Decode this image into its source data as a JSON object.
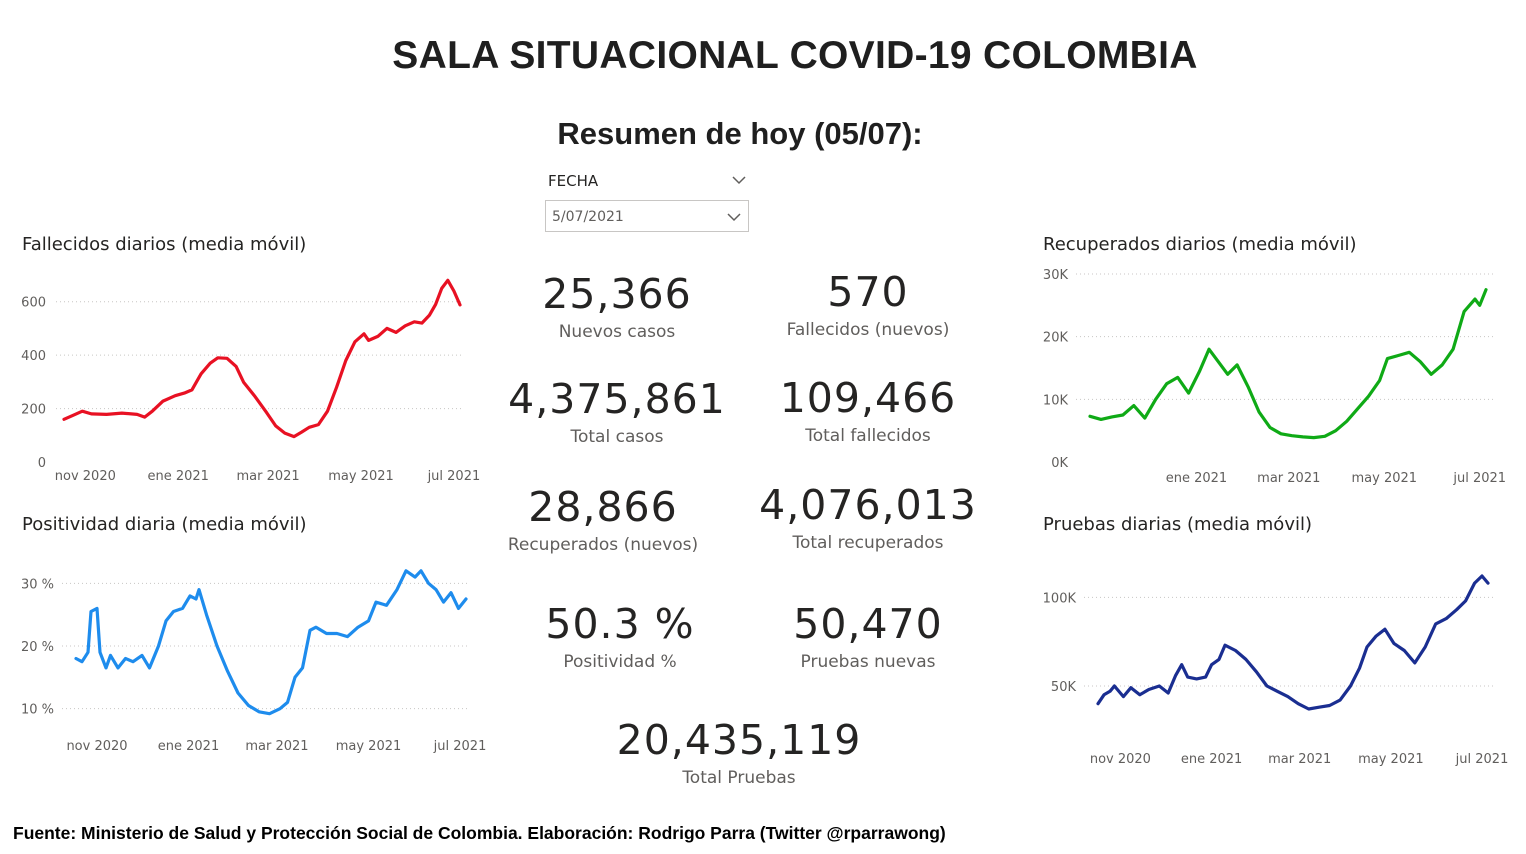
{
  "header": {
    "title": "SALA SITUACIONAL COVID-19 COLOMBIA",
    "subtitle": "Resumen de hoy (05/07):"
  },
  "slicer": {
    "label": "FECHA",
    "value": "5/07/2021"
  },
  "kpis": {
    "nuevos_casos": {
      "value": "25,366",
      "label": "Nuevos casos"
    },
    "fallecidos_nuevos": {
      "value": "570",
      "label": "Fallecidos (nuevos)"
    },
    "total_casos": {
      "value": "4,375,861",
      "label": "Total casos"
    },
    "total_fallecidos": {
      "value": "109,466",
      "label": "Total fallecidos"
    },
    "recuperados_nuevos": {
      "value": "28,866",
      "label": "Recuperados (nuevos)"
    },
    "total_recuperados": {
      "value": "4,076,013",
      "label": "Total recuperados"
    },
    "positividad": {
      "value": "50.3 %",
      "label": "Positividad %"
    },
    "pruebas_nuevas": {
      "value": "50,470",
      "label": "Pruebas nuevas"
    },
    "total_pruebas": {
      "value": "20,435,119",
      "label": "Total Pruebas"
    }
  },
  "footer": "Fuente: Ministerio de Salud y Protección Social de Colombia. Elaboración: Rodrigo Parra (Twitter @rparrawong)",
  "chart_data": [
    {
      "id": "fallecidos",
      "type": "line",
      "title": "Fallecidos diarios (media móvil)",
      "color": "#e81123",
      "x_range": [
        "2020-10-18",
        "2021-07-05"
      ],
      "ylim": [
        0,
        700
      ],
      "yticks": [
        {
          "v": 0,
          "label": "0"
        },
        {
          "v": 200,
          "label": "200"
        },
        {
          "v": 400,
          "label": "400"
        },
        {
          "v": 600,
          "label": "600"
        }
      ],
      "xticks": [
        {
          "d": "2020-11-01",
          "label": "nov 2020"
        },
        {
          "d": "2021-01-01",
          "label": "ene 2021"
        },
        {
          "d": "2021-03-01",
          "label": "mar 2021"
        },
        {
          "d": "2021-05-01",
          "label": "may 2021"
        },
        {
          "d": "2021-07-01",
          "label": "jul 2021"
        }
      ],
      "points": [
        [
          "2020-10-18",
          160
        ],
        [
          "2020-10-24",
          175
        ],
        [
          "2020-10-30",
          190
        ],
        [
          "2020-11-05",
          180
        ],
        [
          "2020-11-15",
          178
        ],
        [
          "2020-11-25",
          183
        ],
        [
          "2020-12-05",
          178
        ],
        [
          "2020-12-10",
          168
        ],
        [
          "2020-12-15",
          190
        ],
        [
          "2020-12-22",
          228
        ],
        [
          "2020-12-30",
          248
        ],
        [
          "2021-01-05",
          258
        ],
        [
          "2021-01-10",
          270
        ],
        [
          "2021-01-16",
          330
        ],
        [
          "2021-01-22",
          370
        ],
        [
          "2021-01-27",
          390
        ],
        [
          "2021-02-02",
          388
        ],
        [
          "2021-02-08",
          358
        ],
        [
          "2021-02-13",
          298
        ],
        [
          "2021-02-20",
          248
        ],
        [
          "2021-02-28",
          185
        ],
        [
          "2021-03-06",
          135
        ],
        [
          "2021-03-12",
          108
        ],
        [
          "2021-03-18",
          95
        ],
        [
          "2021-03-23",
          112
        ],
        [
          "2021-03-28",
          130
        ],
        [
          "2021-04-03",
          140
        ],
        [
          "2021-04-09",
          190
        ],
        [
          "2021-04-15",
          280
        ],
        [
          "2021-04-21",
          380
        ],
        [
          "2021-04-27",
          450
        ],
        [
          "2021-05-03",
          480
        ],
        [
          "2021-05-06",
          455
        ],
        [
          "2021-05-12",
          470
        ],
        [
          "2021-05-18",
          500
        ],
        [
          "2021-05-24",
          485
        ],
        [
          "2021-05-30",
          510
        ],
        [
          "2021-06-05",
          525
        ],
        [
          "2021-06-10",
          520
        ],
        [
          "2021-06-15",
          550
        ],
        [
          "2021-06-19",
          590
        ],
        [
          "2021-06-23",
          650
        ],
        [
          "2021-06-27",
          680
        ],
        [
          "2021-07-01",
          640
        ],
        [
          "2021-07-05",
          588
        ]
      ]
    },
    {
      "id": "positividad",
      "type": "line",
      "title": "Positividad diaria (media móvil)",
      "color": "#1e8ced",
      "x_range": [
        "2020-10-18",
        "2021-07-05"
      ],
      "ylim": [
        5,
        35
      ],
      "yticks": [
        {
          "v": 10,
          "label": "10 %"
        },
        {
          "v": 20,
          "label": "20 %"
        },
        {
          "v": 30,
          "label": "30 %"
        }
      ],
      "xticks": [
        {
          "d": "2020-11-01",
          "label": "nov 2020"
        },
        {
          "d": "2021-01-01",
          "label": "ene 2021"
        },
        {
          "d": "2021-03-01",
          "label": "mar 2021"
        },
        {
          "d": "2021-05-01",
          "label": "may 2021"
        },
        {
          "d": "2021-07-01",
          "label": "jul 2021"
        }
      ],
      "points": [
        [
          "2020-10-18",
          18
        ],
        [
          "2020-10-22",
          17.5
        ],
        [
          "2020-10-26",
          19
        ],
        [
          "2020-10-28",
          25.5
        ],
        [
          "2020-11-01",
          26
        ],
        [
          "2020-11-03",
          19
        ],
        [
          "2020-11-07",
          16.5
        ],
        [
          "2020-11-10",
          18.5
        ],
        [
          "2020-11-15",
          16.5
        ],
        [
          "2020-11-20",
          18
        ],
        [
          "2020-11-25",
          17.5
        ],
        [
          "2020-12-01",
          18.5
        ],
        [
          "2020-12-06",
          16.5
        ],
        [
          "2020-12-12",
          20
        ],
        [
          "2020-12-17",
          24
        ],
        [
          "2020-12-22",
          25.5
        ],
        [
          "2020-12-28",
          26
        ],
        [
          "2021-01-02",
          28
        ],
        [
          "2021-01-06",
          27.5
        ],
        [
          "2021-01-08",
          29
        ],
        [
          "2021-01-13",
          25
        ],
        [
          "2021-01-20",
          20
        ],
        [
          "2021-01-27",
          16
        ],
        [
          "2021-02-03",
          12.5
        ],
        [
          "2021-02-10",
          10.5
        ],
        [
          "2021-02-17",
          9.5
        ],
        [
          "2021-02-24",
          9.2
        ],
        [
          "2021-03-03",
          10
        ],
        [
          "2021-03-08",
          11
        ],
        [
          "2021-03-13",
          15
        ],
        [
          "2021-03-18",
          16.5
        ],
        [
          "2021-03-23",
          22.5
        ],
        [
          "2021-03-27",
          23
        ],
        [
          "2021-04-03",
          22
        ],
        [
          "2021-04-10",
          22
        ],
        [
          "2021-04-17",
          21.5
        ],
        [
          "2021-04-24",
          23
        ],
        [
          "2021-05-01",
          24
        ],
        [
          "2021-05-06",
          27
        ],
        [
          "2021-05-13",
          26.5
        ],
        [
          "2021-05-20",
          29
        ],
        [
          "2021-05-26",
          32
        ],
        [
          "2021-06-01",
          31
        ],
        [
          "2021-06-05",
          32
        ],
        [
          "2021-06-10",
          30
        ],
        [
          "2021-06-15",
          29
        ],
        [
          "2021-06-20",
          27
        ],
        [
          "2021-06-25",
          28.5
        ],
        [
          "2021-06-30",
          26
        ],
        [
          "2021-07-05",
          27.5
        ]
      ]
    },
    {
      "id": "recuperados",
      "type": "line",
      "title": "Recuperados diarios (media móvil)",
      "color": "#0faa16",
      "x_range": [
        "2020-10-25",
        "2021-07-05"
      ],
      "ylim": [
        0,
        30000
      ],
      "yticks": [
        {
          "v": 0,
          "label": "0K"
        },
        {
          "v": 10000,
          "label": "10K"
        },
        {
          "v": 20000,
          "label": "20K"
        },
        {
          "v": 30000,
          "label": "30K"
        }
      ],
      "xticks": [
        {
          "d": "2021-01-01",
          "label": "ene 2021"
        },
        {
          "d": "2021-03-01",
          "label": "mar 2021"
        },
        {
          "d": "2021-05-01",
          "label": "may 2021"
        },
        {
          "d": "2021-07-01",
          "label": "jul 2021"
        }
      ],
      "points": [
        [
          "2020-10-25",
          7300
        ],
        [
          "2020-11-01",
          6800
        ],
        [
          "2020-11-08",
          7200
        ],
        [
          "2020-11-15",
          7500
        ],
        [
          "2020-11-22",
          9000
        ],
        [
          "2020-11-29",
          7000
        ],
        [
          "2020-12-06",
          10000
        ],
        [
          "2020-12-13",
          12500
        ],
        [
          "2020-12-20",
          13500
        ],
        [
          "2020-12-27",
          11000
        ],
        [
          "2021-01-03",
          14500
        ],
        [
          "2021-01-09",
          18000
        ],
        [
          "2021-01-15",
          16000
        ],
        [
          "2021-01-21",
          14000
        ],
        [
          "2021-01-27",
          15500
        ],
        [
          "2021-02-03",
          12000
        ],
        [
          "2021-02-10",
          8000
        ],
        [
          "2021-02-17",
          5500
        ],
        [
          "2021-02-24",
          4500
        ],
        [
          "2021-03-03",
          4200
        ],
        [
          "2021-03-10",
          4000
        ],
        [
          "2021-03-17",
          3900
        ],
        [
          "2021-03-24",
          4100
        ],
        [
          "2021-03-31",
          5000
        ],
        [
          "2021-04-07",
          6500
        ],
        [
          "2021-04-14",
          8500
        ],
        [
          "2021-04-21",
          10500
        ],
        [
          "2021-04-28",
          13000
        ],
        [
          "2021-05-03",
          16500
        ],
        [
          "2021-05-10",
          17000
        ],
        [
          "2021-05-17",
          17500
        ],
        [
          "2021-05-24",
          16000
        ],
        [
          "2021-05-31",
          14000
        ],
        [
          "2021-06-07",
          15500
        ],
        [
          "2021-06-14",
          18000
        ],
        [
          "2021-06-21",
          24000
        ],
        [
          "2021-06-28",
          26000
        ],
        [
          "2021-07-01",
          25000
        ],
        [
          "2021-07-05",
          27500
        ]
      ]
    },
    {
      "id": "pruebas",
      "type": "line",
      "title": "Pruebas diarias (media móvil)",
      "color": "#1a2e91",
      "x_range": [
        "2020-10-17",
        "2021-07-05"
      ],
      "ylim": [
        15000,
        125000
      ],
      "yticks": [
        {
          "v": 50000,
          "label": "50K"
        },
        {
          "v": 100000,
          "label": "100K"
        }
      ],
      "xticks": [
        {
          "d": "2020-11-01",
          "label": "nov 2020"
        },
        {
          "d": "2021-01-01",
          "label": "ene 2021"
        },
        {
          "d": "2021-03-01",
          "label": "mar 2021"
        },
        {
          "d": "2021-05-01",
          "label": "may 2021"
        },
        {
          "d": "2021-07-01",
          "label": "jul 2021"
        }
      ],
      "points": [
        [
          "2020-10-17",
          40000
        ],
        [
          "2020-10-21",
          45000
        ],
        [
          "2020-10-25",
          47000
        ],
        [
          "2020-10-28",
          50000
        ],
        [
          "2020-11-03",
          44000
        ],
        [
          "2020-11-08",
          49000
        ],
        [
          "2020-11-14",
          45000
        ],
        [
          "2020-11-20",
          48000
        ],
        [
          "2020-11-27",
          50000
        ],
        [
          "2020-12-03",
          46000
        ],
        [
          "2020-12-08",
          56000
        ],
        [
          "2020-12-12",
          62000
        ],
        [
          "2020-12-16",
          55000
        ],
        [
          "2020-12-22",
          54000
        ],
        [
          "2020-12-28",
          55000
        ],
        [
          "2021-01-01",
          62000
        ],
        [
          "2021-01-06",
          65000
        ],
        [
          "2021-01-10",
          73000
        ],
        [
          "2021-01-17",
          70000
        ],
        [
          "2021-01-24",
          65000
        ],
        [
          "2021-01-31",
          58000
        ],
        [
          "2021-02-07",
          50000
        ],
        [
          "2021-02-14",
          47000
        ],
        [
          "2021-02-21",
          44000
        ],
        [
          "2021-02-28",
          40000
        ],
        [
          "2021-03-07",
          37000
        ],
        [
          "2021-03-14",
          38000
        ],
        [
          "2021-03-21",
          39000
        ],
        [
          "2021-03-28",
          42000
        ],
        [
          "2021-04-04",
          50000
        ],
        [
          "2021-04-10",
          60000
        ],
        [
          "2021-04-15",
          72000
        ],
        [
          "2021-04-21",
          78000
        ],
        [
          "2021-04-27",
          82000
        ],
        [
          "2021-05-03",
          74000
        ],
        [
          "2021-05-10",
          70000
        ],
        [
          "2021-05-17",
          63000
        ],
        [
          "2021-05-24",
          72000
        ],
        [
          "2021-05-31",
          85000
        ],
        [
          "2021-06-07",
          88000
        ],
        [
          "2021-06-14",
          93000
        ],
        [
          "2021-06-20",
          98000
        ],
        [
          "2021-06-26",
          108000
        ],
        [
          "2021-07-01",
          112000
        ],
        [
          "2021-07-05",
          108000
        ]
      ]
    }
  ]
}
